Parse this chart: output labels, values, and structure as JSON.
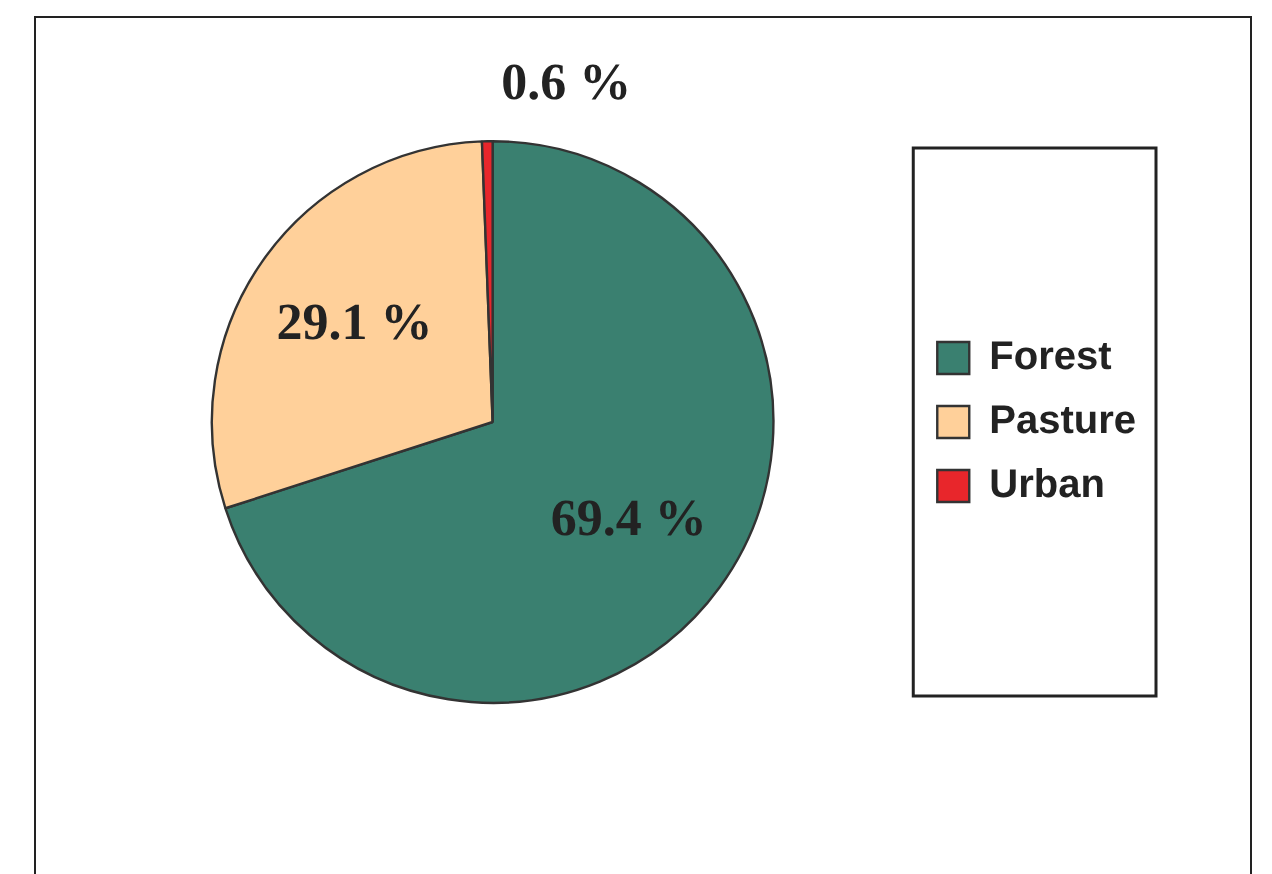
{
  "chart_data": {
    "type": "pie",
    "categories": [
      "Forest",
      "Pasture",
      "Urban"
    ],
    "values": [
      69.4,
      29.1,
      0.6
    ],
    "colors": [
      "#3a8070",
      "#ffd09a",
      "#e8262b"
    ],
    "value_labels": [
      "69.4 %",
      "29.1 %",
      "0.6 %"
    ],
    "legend": "right"
  }
}
